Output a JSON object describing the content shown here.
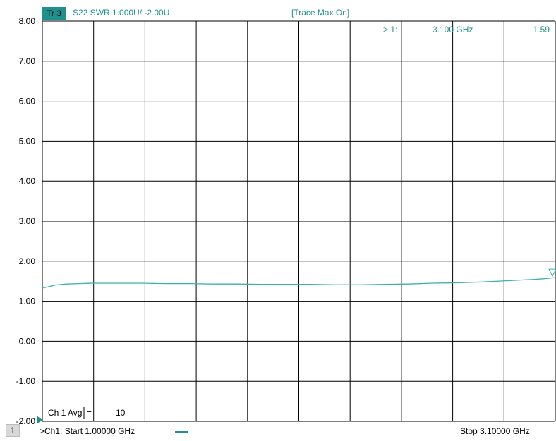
{
  "header": {
    "trace_badge": "Tr 3",
    "trace_title": "S22 SWR 1.000U/  -2.00U",
    "trace_mode": "[Trace Max On]"
  },
  "marker": {
    "label": "> 1:",
    "freq": "3.100 GHz",
    "value": "1.59"
  },
  "avg_label": "Ch 1 Avg",
  "avg_eq": "=",
  "avg_value": "10",
  "footer": {
    "channel_number": "1",
    "left_text": ">Ch1:  Start  1.00000 GHz",
    "right_text": "Stop  3.10000 GHz"
  },
  "colors": {
    "trace": "#3fb0b0",
    "grid": "#000000",
    "accent": "#1f8f8f"
  },
  "chart_data": {
    "type": "line",
    "y_tick_labels": [
      "8.00",
      "7.00",
      "6.00",
      "5.00",
      "4.00",
      "3.00",
      "2.00",
      "1.00",
      "0.00",
      "-1.00",
      "-2.00"
    ],
    "ylim": [
      -2,
      8
    ],
    "xlim": [
      1.0,
      3.1
    ],
    "x_unit": "GHz",
    "y_unit": "U",
    "grid": true,
    "series": [
      {
        "x": [
          1.0,
          1.03,
          1.05,
          1.08,
          1.1,
          1.15,
          1.2,
          1.3,
          1.4,
          1.5,
          1.6,
          1.7,
          1.8,
          1.9,
          2.0,
          2.1,
          2.2,
          2.3,
          2.4,
          2.5,
          2.6,
          2.7,
          2.8,
          2.9,
          3.0,
          3.05,
          3.1
        ],
        "y": [
          1.33,
          1.37,
          1.4,
          1.42,
          1.43,
          1.44,
          1.45,
          1.45,
          1.45,
          1.44,
          1.44,
          1.43,
          1.43,
          1.42,
          1.42,
          1.42,
          1.41,
          1.41,
          1.42,
          1.43,
          1.45,
          1.46,
          1.48,
          1.51,
          1.54,
          1.56,
          1.59
        ]
      }
    ],
    "marker": {
      "x": 3.1,
      "y": 1.59
    }
  }
}
